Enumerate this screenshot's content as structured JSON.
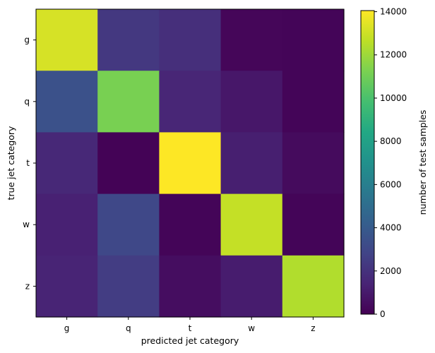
{
  "chart_data": {
    "type": "heatmap",
    "x_categories": [
      "g",
      "q",
      "t",
      "w",
      "z"
    ],
    "y_categories": [
      "g",
      "q",
      "t",
      "w",
      "z"
    ],
    "values": [
      [
        13200,
        2300,
        1900,
        200,
        150
      ],
      [
        3500,
        11200,
        1500,
        900,
        150
      ],
      [
        1600,
        100,
        14050,
        1200,
        400
      ],
      [
        1300,
        3000,
        150,
        12800,
        150
      ],
      [
        1400,
        2500,
        500,
        1100,
        12400
      ]
    ],
    "xlabel": "predicted jet category",
    "ylabel": "true jet category",
    "colorbar": {
      "label": "number of test samples",
      "range": [
        0,
        14050
      ],
      "ticks": [
        0,
        2000,
        4000,
        6000,
        8000,
        10000,
        12000,
        14000
      ],
      "colormap": "viridis"
    },
    "grid": false
  }
}
